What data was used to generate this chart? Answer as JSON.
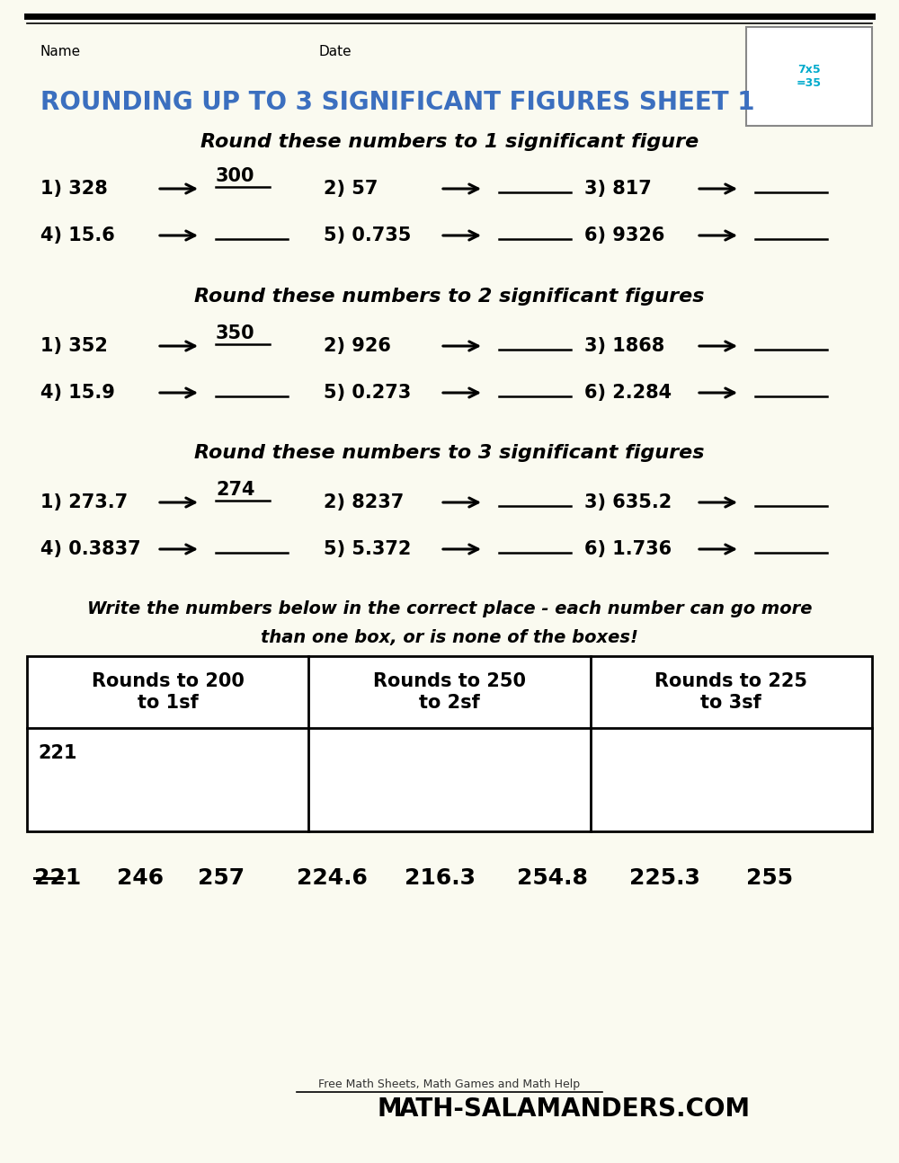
{
  "bg_color": "#FAFAF0",
  "title_color": "#3B6FBF",
  "title_text": "ROUNDING UP TO 3 SIGNIFICANT FIGURES SHEET 1",
  "title_fontsize": 20,
  "name_label": "Name",
  "date_label": "Date",
  "section1_heading": "Round these numbers to 1 significant figure",
  "section2_heading": "Round these numbers to 2 significant figures",
  "section3_heading": "Round these numbers to 3 significant figures",
  "section4_line1": "Write the numbers below in the correct place - each number can go more",
  "section4_line2": "than one box, or is none of the boxes!",
  "section1_rows": [
    [
      [
        "1) 328",
        "300",
        true
      ],
      [
        "2) 57",
        "",
        false
      ],
      [
        "3) 817",
        "",
        false
      ]
    ],
    [
      [
        "4) 15.6",
        "",
        false
      ],
      [
        "5) 0.735",
        "",
        false
      ],
      [
        "6) 9326",
        "",
        false
      ]
    ]
  ],
  "section2_rows": [
    [
      [
        "1) 352",
        "350",
        true
      ],
      [
        "2) 926",
        "",
        false
      ],
      [
        "3) 1868",
        "",
        false
      ]
    ],
    [
      [
        "4) 15.9",
        "",
        false
      ],
      [
        "5) 0.273",
        "",
        false
      ],
      [
        "6) 2.284",
        "",
        false
      ]
    ]
  ],
  "section3_rows": [
    [
      [
        "1) 273.7",
        "274",
        true
      ],
      [
        "2) 8237",
        "",
        false
      ],
      [
        "3) 635.2",
        "",
        false
      ]
    ],
    [
      [
        "4) 0.3837",
        "",
        false
      ],
      [
        "5) 5.372",
        "",
        false
      ],
      [
        "6) 1.736",
        "",
        false
      ]
    ]
  ],
  "table_headers": [
    "Rounds to 200\nto 1sf",
    "Rounds to 250\nto 2sf",
    "Rounds to 225\nto 3sf"
  ],
  "table_answer": "221",
  "number_list": [
    "221",
    "246",
    "257",
    "224.6",
    "216.3",
    "254.8",
    "225.3",
    "255"
  ],
  "strikethrough_index": 0,
  "footer_text": "Free Math Sheets, Math Games and Math Help",
  "footer_url": "ATH-SALAMANDERS.COM"
}
